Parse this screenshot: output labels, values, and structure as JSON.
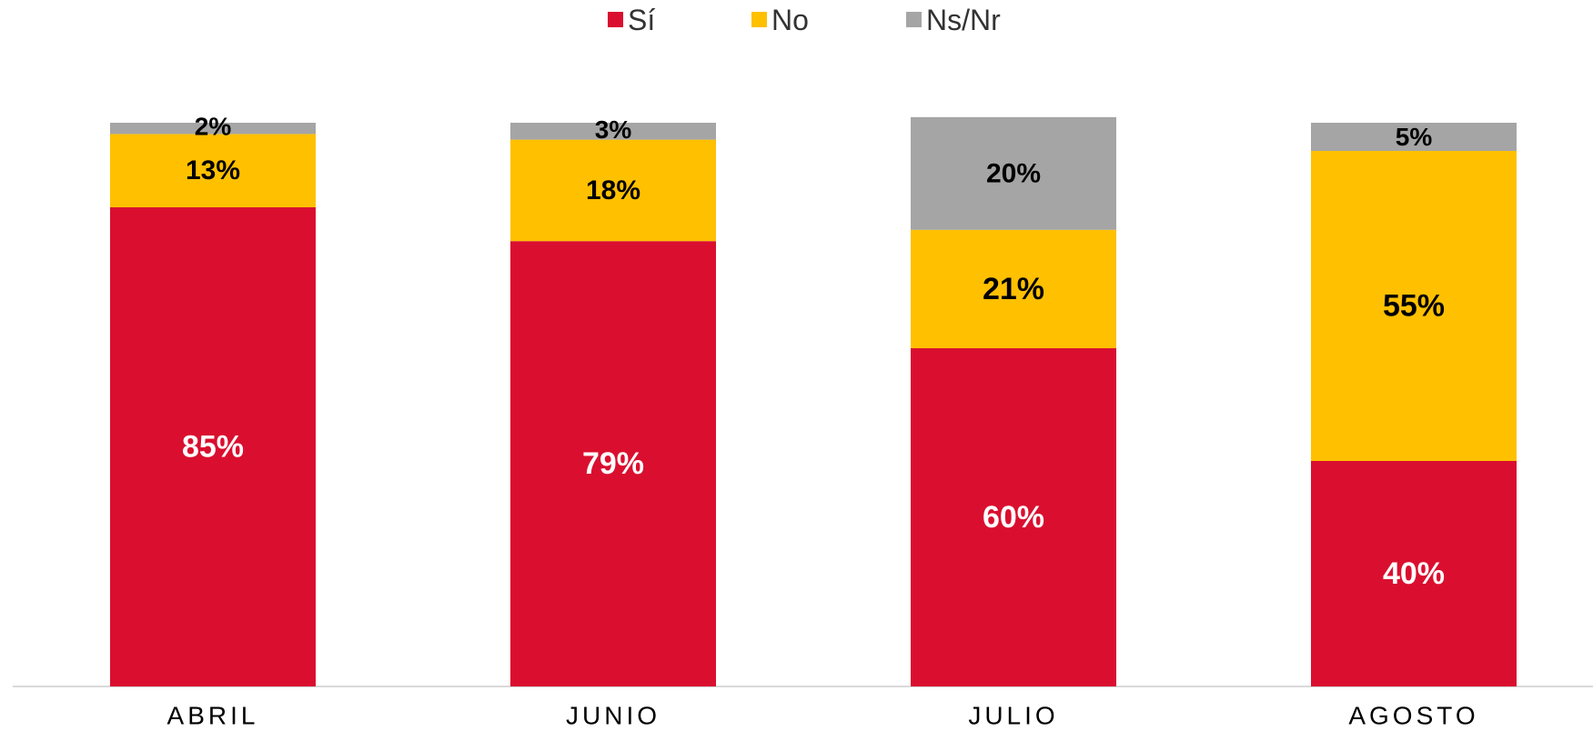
{
  "chart_data": {
    "type": "stacked_bar",
    "categories": [
      "ABRIL",
      "JUNIO",
      "JULIO",
      "AGOSTO"
    ],
    "series": [
      {
        "name": "Sí",
        "color": "#da0f2f",
        "values": [
          85,
          79,
          60,
          40
        ],
        "value_labels": [
          "85%",
          "79%",
          "60%",
          "40%"
        ]
      },
      {
        "name": "No",
        "color": "#ffc000",
        "values": [
          13,
          18,
          21,
          55
        ],
        "value_labels": [
          "13%",
          "18%",
          "21%",
          "55%"
        ]
      },
      {
        "name": "Ns/Nr",
        "color": "#a5a5a5",
        "values": [
          2,
          3,
          20,
          5
        ],
        "value_labels": [
          "2%",
          "3%",
          "20%",
          "5%"
        ]
      }
    ],
    "legend": "top"
  }
}
